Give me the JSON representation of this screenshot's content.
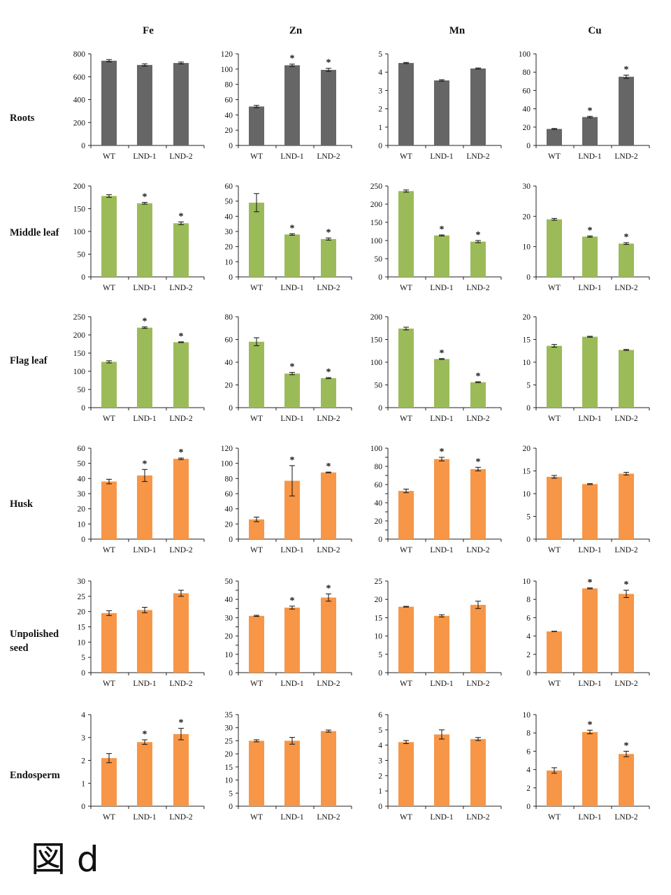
{
  "colors": {
    "gray": "#666666",
    "green": "#9BBB59",
    "orange": "#F79646"
  },
  "caption": "図 d",
  "chart_data": {
    "type": "bar",
    "columns": [
      "Fe",
      "Zn",
      "Mn",
      "Cu"
    ],
    "rows": [
      "Roots",
      "Middle leaf",
      "Flag leaf",
      "Husk",
      "Unpolished seed",
      "Endosperm"
    ],
    "row_color": [
      "gray",
      "green",
      "green",
      "orange",
      "orange",
      "orange"
    ],
    "categories": [
      "WT",
      "LND-1",
      "LND-2"
    ],
    "panels": [
      [
        {
          "element": "Fe",
          "ylim": [
            0,
            800
          ],
          "ticks": [
            0,
            200,
            400,
            600,
            800
          ],
          "values": [
            740,
            703,
            720
          ],
          "err": [
            10,
            10,
            8
          ],
          "sig": [
            false,
            false,
            false
          ]
        },
        {
          "element": "Zn",
          "ylim": [
            0,
            120
          ],
          "ticks": [
            0,
            20,
            40,
            60,
            80,
            100,
            120
          ],
          "values": [
            51,
            105,
            99
          ],
          "err": [
            1.5,
            1.5,
            2
          ],
          "sig": [
            false,
            true,
            true
          ]
        },
        {
          "element": "Mn",
          "ylim": [
            0,
            5
          ],
          "ticks": [
            0,
            1,
            2,
            3,
            4,
            5
          ],
          "values": [
            4.5,
            3.55,
            4.2
          ],
          "err": [
            0.03,
            0.04,
            0.03
          ],
          "sig": [
            false,
            false,
            false
          ]
        },
        {
          "element": "Cu",
          "ylim": [
            0,
            100
          ],
          "ticks": [
            0,
            20,
            40,
            60,
            80,
            100
          ],
          "values": [
            18,
            31,
            75
          ],
          "err": [
            0.5,
            0.8,
            1.8
          ],
          "sig": [
            false,
            true,
            true
          ]
        }
      ],
      [
        {
          "element": "Fe",
          "ylim": [
            0,
            200
          ],
          "ticks": [
            0,
            50,
            100,
            150,
            200
          ],
          "values": [
            178,
            162,
            118
          ],
          "err": [
            3,
            2,
            3
          ],
          "sig": [
            false,
            true,
            true
          ]
        },
        {
          "element": "Zn",
          "ylim": [
            0,
            60
          ],
          "ticks": [
            0,
            10,
            20,
            30,
            40,
            50,
            60
          ],
          "values": [
            49,
            28,
            25
          ],
          "err": [
            6,
            0.5,
            0.7
          ],
          "sig": [
            false,
            true,
            true
          ]
        },
        {
          "element": "Mn",
          "ylim": [
            0,
            250
          ],
          "ticks": [
            0,
            50,
            100,
            150,
            200,
            250
          ],
          "values": [
            236,
            114,
            97
          ],
          "err": [
            3,
            1.5,
            3
          ],
          "sig": [
            false,
            true,
            true
          ]
        },
        {
          "element": "Cu",
          "ylim": [
            0,
            30
          ],
          "ticks": [
            0,
            10,
            20,
            30
          ],
          "values": [
            19,
            13.3,
            11
          ],
          "err": [
            0.3,
            0.2,
            0.3
          ],
          "sig": [
            false,
            true,
            true
          ]
        }
      ],
      [
        {
          "element": "Fe",
          "ylim": [
            0,
            250
          ],
          "ticks": [
            0,
            50,
            100,
            150,
            200,
            250
          ],
          "values": [
            126,
            220,
            180
          ],
          "err": [
            3,
            2,
            1
          ],
          "sig": [
            false,
            true,
            true
          ]
        },
        {
          "element": "Zn",
          "ylim": [
            0,
            80
          ],
          "ticks": [
            0,
            20,
            40,
            60,
            80
          ],
          "values": [
            58,
            30,
            26
          ],
          "err": [
            3.5,
            1,
            0.5
          ],
          "sig": [
            false,
            true,
            true
          ]
        },
        {
          "element": "Mn",
          "ylim": [
            0,
            200
          ],
          "ticks": [
            0,
            50,
            100,
            150,
            200
          ],
          "values": [
            174,
            107,
            56
          ],
          "err": [
            3,
            1,
            1
          ],
          "sig": [
            false,
            true,
            true
          ]
        },
        {
          "element": "Cu",
          "ylim": [
            0,
            20
          ],
          "ticks": [
            0,
            5,
            10,
            15,
            20
          ],
          "values": [
            13.6,
            15.6,
            12.7
          ],
          "err": [
            0.3,
            0.1,
            0.1
          ],
          "sig": [
            false,
            false,
            false
          ]
        }
      ],
      [
        {
          "element": "Fe",
          "ylim": [
            0,
            60
          ],
          "ticks": [
            0,
            10,
            20,
            30,
            40,
            50,
            60
          ],
          "values": [
            38,
            42,
            53
          ],
          "err": [
            1.5,
            4,
            0.5
          ],
          "sig": [
            false,
            true,
            true
          ]
        },
        {
          "element": "Zn",
          "ylim": [
            0,
            120
          ],
          "ticks": [
            0,
            20,
            40,
            60,
            80,
            100,
            120
          ],
          "values": [
            26,
            77,
            88
          ],
          "err": [
            3,
            20,
            0.5
          ],
          "sig": [
            false,
            true,
            true
          ]
        },
        {
          "element": "Mn",
          "ylim": [
            0,
            100
          ],
          "ticks": [
            0,
            10,
            20,
            30,
            40,
            50,
            60,
            70,
            80,
            90,
            100
          ],
          "tick_labels": [
            0,
            20,
            40,
            60,
            80,
            100
          ],
          "values": [
            53,
            88,
            77
          ],
          "err": [
            2,
            2,
            2
          ],
          "sig": [
            false,
            true,
            true
          ]
        },
        {
          "element": "Cu",
          "ylim": [
            0,
            20
          ],
          "ticks": [
            0,
            5,
            10,
            15,
            20
          ],
          "values": [
            13.7,
            12.1,
            14.4
          ],
          "err": [
            0.3,
            0.1,
            0.3
          ],
          "sig": [
            false,
            false,
            false
          ]
        }
      ],
      [
        {
          "element": "Fe",
          "ylim": [
            0,
            30
          ],
          "ticks": [
            0,
            5,
            10,
            15,
            20,
            25,
            30
          ],
          "values": [
            19.5,
            20.5,
            26
          ],
          "err": [
            0.8,
            0.9,
            1
          ],
          "sig": [
            false,
            false,
            false
          ]
        },
        {
          "element": "Zn",
          "ylim": [
            0,
            50
          ],
          "ticks": [
            0,
            5,
            10,
            15,
            20,
            25,
            30,
            35,
            40,
            45,
            50
          ],
          "tick_labels": [
            0,
            10,
            20,
            30,
            40,
            50
          ],
          "values": [
            31,
            35.5,
            41
          ],
          "err": [
            0.3,
            0.8,
            2
          ],
          "sig": [
            false,
            true,
            true
          ]
        },
        {
          "element": "Mn",
          "ylim": [
            0,
            25
          ],
          "ticks": [
            0,
            5,
            10,
            15,
            20,
            25
          ],
          "values": [
            18,
            15.5,
            18.5
          ],
          "err": [
            0.1,
            0.3,
            1
          ],
          "sig": [
            false,
            false,
            false
          ]
        },
        {
          "element": "Cu",
          "ylim": [
            0,
            10
          ],
          "ticks": [
            0,
            2,
            4,
            6,
            8,
            10
          ],
          "values": [
            4.5,
            9.2,
            8.6
          ],
          "err": [
            0.02,
            0.05,
            0.4
          ],
          "sig": [
            false,
            true,
            true
          ]
        }
      ],
      [
        {
          "element": "Fe",
          "ylim": [
            0,
            4
          ],
          "ticks": [
            0,
            1,
            2,
            3,
            4
          ],
          "values": [
            2.1,
            2.8,
            3.15
          ],
          "err": [
            0.2,
            0.1,
            0.25
          ],
          "sig": [
            false,
            true,
            true
          ]
        },
        {
          "element": "Zn",
          "ylim": [
            0,
            35
          ],
          "ticks": [
            0,
            5,
            10,
            15,
            20,
            25,
            30,
            35
          ],
          "values": [
            25,
            25,
            28.7
          ],
          "err": [
            0.4,
            1.3,
            0.4
          ],
          "sig": [
            false,
            false,
            false
          ]
        },
        {
          "element": "Mn",
          "ylim": [
            0,
            6
          ],
          "ticks": [
            0,
            1,
            2,
            3,
            4,
            5,
            6
          ],
          "values": [
            4.2,
            4.7,
            4.4
          ],
          "err": [
            0.1,
            0.3,
            0.1
          ],
          "sig": [
            false,
            false,
            false
          ]
        },
        {
          "element": "Cu",
          "ylim": [
            0,
            10
          ],
          "ticks": [
            0,
            2,
            4,
            6,
            8,
            10
          ],
          "values": [
            3.9,
            8.1,
            5.7
          ],
          "err": [
            0.3,
            0.2,
            0.3
          ],
          "sig": [
            false,
            true,
            true
          ]
        }
      ]
    ]
  }
}
